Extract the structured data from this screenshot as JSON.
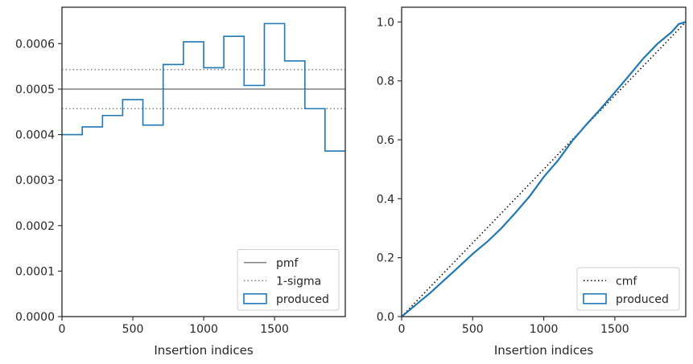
{
  "chart_data": [
    {
      "type": "line",
      "subtype": "step-histogram",
      "xlabel": "Insertion indices",
      "ylabel": "",
      "xlim": [
        0,
        1999
      ],
      "ylim": [
        0,
        0.00068
      ],
      "xticks": [
        0,
        500,
        1000,
        1500
      ],
      "xtick_labels": [
        "0",
        "500",
        "1000",
        "1500"
      ],
      "yticks": [
        0,
        0.0001,
        0.0002,
        0.0003,
        0.0004,
        0.0005,
        0.0006
      ],
      "ytick_labels": [
        "0.0000",
        "0.0001",
        "0.0002",
        "0.0003",
        "0.0004",
        "0.0005",
        "0.0006"
      ],
      "grid": false,
      "legend_position": "lower-right",
      "legend": [
        {
          "label": "pmf",
          "style": "solid-line",
          "color": "#808080"
        },
        {
          "label": "1-sigma",
          "style": "dotted-line",
          "color": "#808080"
        },
        {
          "label": "produced",
          "style": "box",
          "color": "#1f77b4"
        }
      ],
      "reference_lines": [
        {
          "name": "pmf",
          "y": 0.0005,
          "style": "solid",
          "color": "#808080"
        },
        {
          "name": "1-sigma",
          "y": 0.000543,
          "style": "dotted",
          "color": "#808080"
        },
        {
          "name": "1-sigma",
          "y": 0.000457,
          "style": "dotted",
          "color": "#808080"
        }
      ],
      "series": [
        {
          "name": "produced",
          "color": "#1f77b4",
          "bin_edges": [
            0,
            143,
            286,
            428,
            571,
            714,
            857,
            1000,
            1142,
            1285,
            1428,
            1571,
            1714,
            1856,
            1999
          ],
          "values": [
            0.0004,
            0.000417,
            0.000442,
            0.000477,
            0.000421,
            0.000554,
            0.000604,
            0.000547,
            0.000616,
            0.000508,
            0.000644,
            0.000562,
            0.000457,
            0.000364
          ]
        }
      ]
    },
    {
      "type": "line",
      "xlabel": "Insertion indices",
      "ylabel": "",
      "xlim": [
        0,
        1999
      ],
      "ylim": [
        0,
        1.05
      ],
      "xticks": [
        0,
        500,
        1000,
        1500
      ],
      "xtick_labels": [
        "0",
        "500",
        "1000",
        "1500"
      ],
      "yticks": [
        0,
        0.2,
        0.4,
        0.6,
        0.8,
        1.0
      ],
      "ytick_labels": [
        "0.0",
        "0.2",
        "0.4",
        "0.6",
        "0.8",
        "1.0"
      ],
      "grid": false,
      "legend_position": "lower-right",
      "legend": [
        {
          "label": "cmf",
          "style": "dotted-line",
          "color": "#000000"
        },
        {
          "label": "produced",
          "style": "box",
          "color": "#1f77b4"
        }
      ],
      "series": [
        {
          "name": "cmf",
          "style": "dotted",
          "color": "#000000",
          "x": [
            0,
            1999
          ],
          "y": [
            0,
            1.0
          ]
        },
        {
          "name": "produced",
          "style": "solid",
          "color": "#1f77b4",
          "x": [
            0,
            100,
            200,
            300,
            400,
            500,
            600,
            700,
            800,
            900,
            1000,
            1100,
            1200,
            1300,
            1400,
            1500,
            1600,
            1700,
            1800,
            1900,
            1950,
            1999
          ],
          "y": [
            0,
            0.04,
            0.08,
            0.124,
            0.168,
            0.213,
            0.253,
            0.299,
            0.352,
            0.408,
            0.474,
            0.53,
            0.596,
            0.652,
            0.705,
            0.761,
            0.818,
            0.876,
            0.926,
            0.966,
            0.993,
            1.0
          ]
        }
      ]
    }
  ]
}
